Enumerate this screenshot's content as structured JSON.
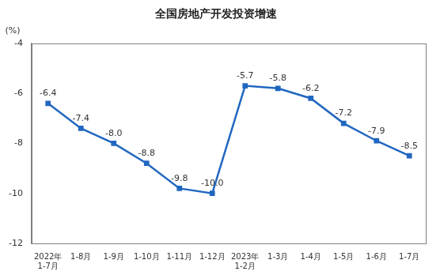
{
  "chart_data": {
    "type": "line",
    "title": "全国房地产开发投资增速",
    "y_label": "(%)",
    "categories": [
      "2022年\n1-7月",
      "1-8月",
      "1-9月",
      "1-10月",
      "1-11月",
      "1-12月",
      "2023年\n1-2月",
      "1-3月",
      "1-4月",
      "1-5月",
      "1-6月",
      "1-7月"
    ],
    "values": [
      -6.4,
      -7.4,
      -8.0,
      -8.8,
      -9.8,
      -10.0,
      -5.7,
      -5.8,
      -6.2,
      -7.2,
      -7.9,
      -8.5
    ],
    "value_labels": [
      "-6.4",
      "-7.4",
      "-8.0",
      "-8.8",
      "-9.8",
      "-10.0",
      "-5.7",
      "-5.8",
      "-6.2",
      "-7.2",
      "-7.9",
      "-8.5"
    ],
    "color": "#2167c0",
    "marker": "square",
    "ylim": [
      -12,
      -4
    ],
    "yticks": [
      -12,
      -10,
      -8,
      -6,
      -4
    ],
    "grid": false,
    "data_labels": true
  }
}
